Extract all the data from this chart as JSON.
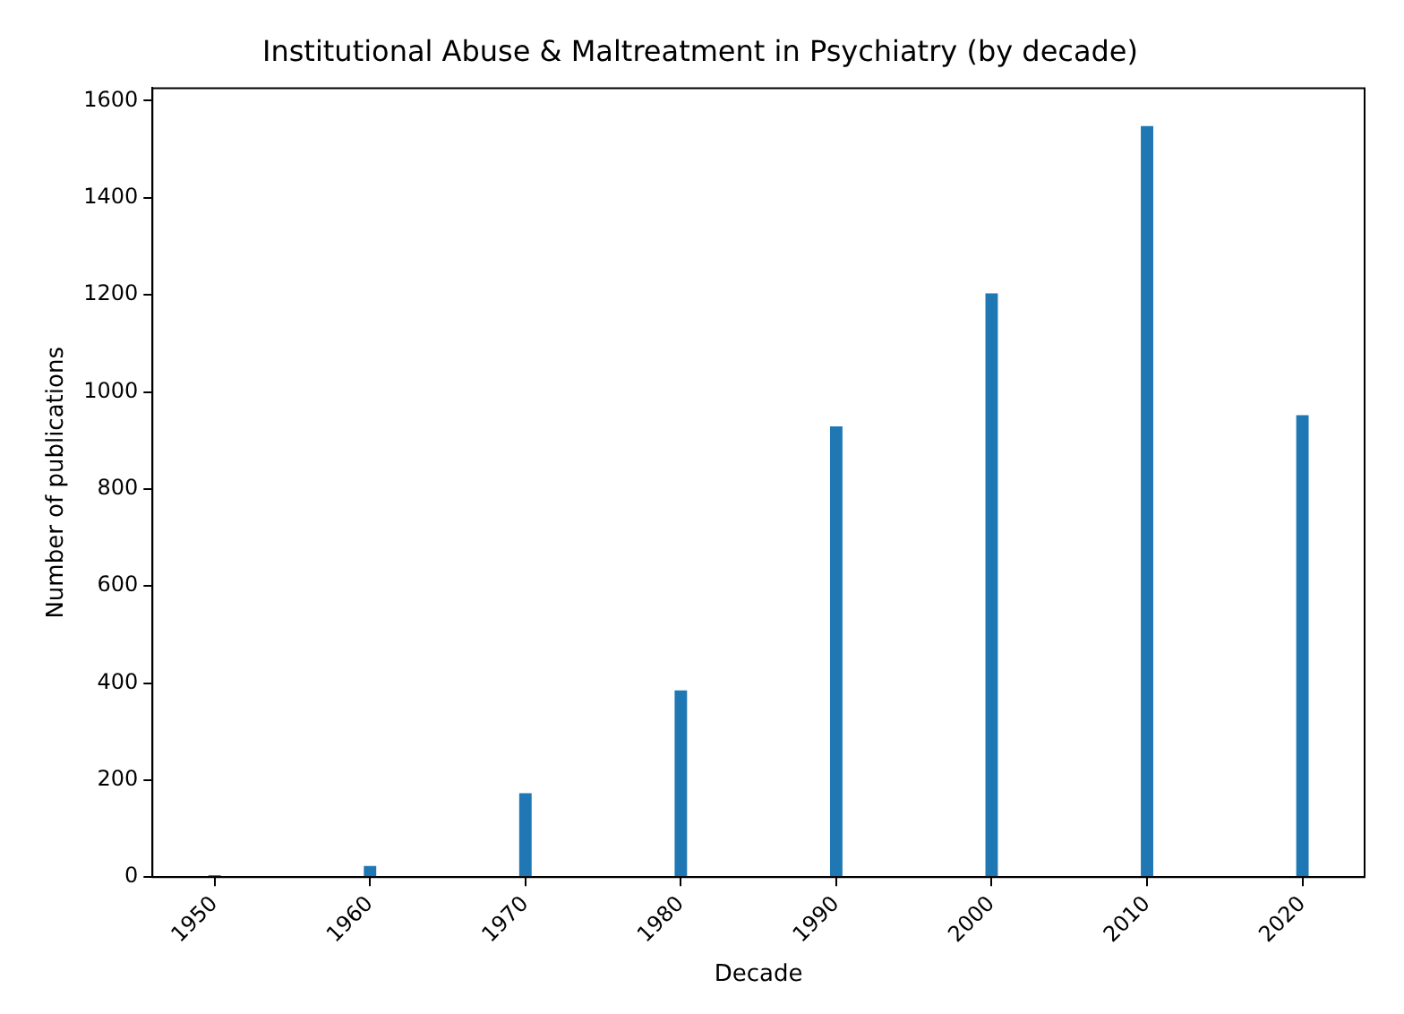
{
  "chart_data": {
    "type": "bar",
    "title": "Institutional Abuse & Maltreatment in Psychiatry (by decade)",
    "xlabel": "Decade",
    "ylabel": "Number of publications",
    "x": [
      1950,
      1960,
      1970,
      1980,
      1990,
      2000,
      2010,
      2020
    ],
    "values": [
      4,
      23,
      173,
      385,
      929,
      1203,
      1548,
      952
    ],
    "color": "#1f77b4",
    "xlim": [
      1946,
      2024
    ],
    "xticks": [
      1950,
      1960,
      1970,
      1980,
      1990,
      2000,
      2010,
      2020
    ],
    "ylim": [
      0,
      1626
    ],
    "yticks": [
      0,
      200,
      400,
      600,
      800,
      1000,
      1200,
      1400,
      1600
    ],
    "grid": false,
    "legend": false
  }
}
